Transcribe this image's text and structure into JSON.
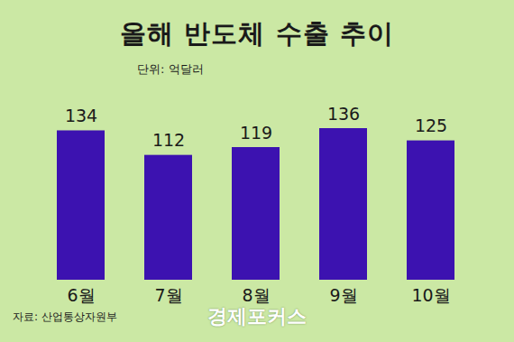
{
  "chart_data": {
    "type": "bar",
    "title": "올해 반도체 수출 추이",
    "subtitle": "단위: 억달러",
    "categories": [
      "6월",
      "7월",
      "8월",
      "9월",
      "10월"
    ],
    "values": [
      134,
      112,
      119,
      136,
      125
    ],
    "color": "#3c12b0",
    "ylim": [
      0,
      136
    ],
    "yticks": [],
    "data_labels": true,
    "tick_labels": "x",
    "grid": false,
    "source": "자료: 산업통상자원부",
    "logo": "경제포커스"
  }
}
